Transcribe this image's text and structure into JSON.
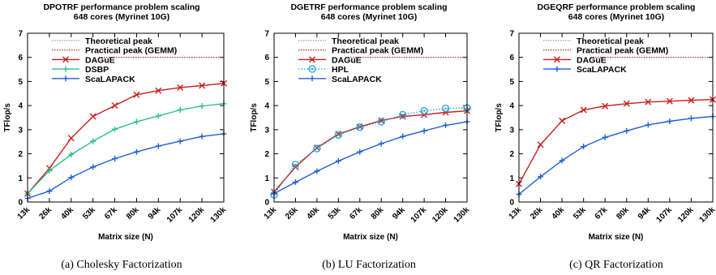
{
  "chart_data": [
    {
      "type": "line",
      "title": "DPOTRF performance problem scaling",
      "subtitle": "648 cores (Myrinet 10G)",
      "xlabel": "Matrix size (N)",
      "ylabel": "TFlop/s",
      "caption": "(a) Cholesky Factorization",
      "ylim": [
        0,
        7
      ],
      "yticks": [
        "0",
        "1",
        "2",
        "3",
        "4",
        "5",
        "6",
        "7"
      ],
      "categories": [
        "13k",
        "26k",
        "40k",
        "53k",
        "67k",
        "80k",
        "94k",
        "107k",
        "120k",
        "130k"
      ],
      "reference_lines": [
        {
          "name": "Theoretical peak",
          "value": 7.0,
          "color": "#7f7f7f",
          "style": "dotted"
        },
        {
          "name": "Practical peak (GEMM)",
          "value": 6.0,
          "color": "#8b0000",
          "style": "dotted"
        }
      ],
      "series": [
        {
          "name": "DAGuE",
          "color": "#c81e1e",
          "marker": "x",
          "values": [
            0.35,
            1.4,
            2.65,
            3.55,
            4.0,
            4.45,
            4.62,
            4.75,
            4.83,
            4.92
          ]
        },
        {
          "name": "DSBP",
          "color": "#2fbf8f",
          "marker": "plus",
          "values": [
            0.35,
            1.3,
            1.97,
            2.52,
            3.02,
            3.33,
            3.57,
            3.82,
            3.98,
            4.08
          ]
        },
        {
          "name": "ScaLAPACK",
          "color": "#1f5fd6",
          "marker": "plus",
          "values": [
            0.15,
            0.45,
            1.02,
            1.45,
            1.8,
            2.08,
            2.32,
            2.52,
            2.72,
            2.83
          ]
        }
      ],
      "legend": "top-left",
      "grid": false
    },
    {
      "type": "line",
      "title": "DGETRF performance problem scaling",
      "subtitle": "648 cores (Myrinet 10G)",
      "xlabel": "Matrix size (N)",
      "ylabel": "TFlop/s",
      "caption": "(b) LU Factorization",
      "ylim": [
        0,
        7
      ],
      "yticks": [
        "0",
        "1",
        "2",
        "3",
        "4",
        "5",
        "6",
        "7"
      ],
      "categories": [
        "13k",
        "26k",
        "40k",
        "53k",
        "67k",
        "80k",
        "94k",
        "107k",
        "120k",
        "130k"
      ],
      "reference_lines": [
        {
          "name": "Theoretical peak",
          "value": 7.0,
          "color": "#7f7f7f",
          "style": "dotted"
        },
        {
          "name": "Practical peak (GEMM)",
          "value": 6.0,
          "color": "#8b0000",
          "style": "dotted"
        }
      ],
      "series": [
        {
          "name": "DAGuE",
          "color": "#c81e1e",
          "marker": "x",
          "values": [
            0.42,
            1.45,
            2.25,
            2.82,
            3.12,
            3.38,
            3.55,
            3.62,
            3.72,
            3.78
          ]
        },
        {
          "name": "HPL",
          "color": "#2aa8d8",
          "marker": "circle",
          "dash": true,
          "values": [
            0.3,
            1.55,
            2.22,
            2.78,
            3.1,
            3.33,
            3.62,
            3.78,
            3.88,
            3.9
          ]
        },
        {
          "name": "ScaLAPACK",
          "color": "#1f5fd6",
          "marker": "plus",
          "values": [
            0.35,
            0.82,
            1.28,
            1.7,
            2.08,
            2.42,
            2.72,
            2.95,
            3.18,
            3.33
          ]
        }
      ],
      "legend": "top-left",
      "grid": false
    },
    {
      "type": "line",
      "title": "DGEQRF performance problem scaling",
      "subtitle": "648 cores (Myrinet 10G)",
      "xlabel": "Matrix size (N)",
      "ylabel": "TFlop/s",
      "caption": "(c) QR Factorization",
      "ylim": [
        0,
        7
      ],
      "yticks": [
        "0",
        "1",
        "2",
        "3",
        "4",
        "5",
        "6",
        "7"
      ],
      "categories": [
        "13k",
        "26k",
        "40k",
        "53k",
        "67k",
        "80k",
        "94k",
        "107k",
        "120k",
        "130k"
      ],
      "reference_lines": [
        {
          "name": "Theoretical peak",
          "value": 7.0,
          "color": "#7f7f7f",
          "style": "dotted"
        },
        {
          "name": "Practical peak (GEMM)",
          "value": 6.0,
          "color": "#8b0000",
          "style": "dotted"
        }
      ],
      "series": [
        {
          "name": "DAGuE",
          "color": "#c81e1e",
          "marker": "x",
          "values": [
            0.75,
            2.38,
            3.37,
            3.82,
            3.98,
            4.08,
            4.15,
            4.18,
            4.22,
            4.25
          ]
        },
        {
          "name": "ScaLAPACK",
          "color": "#1f5fd6",
          "marker": "plus",
          "values": [
            0.32,
            1.05,
            1.72,
            2.3,
            2.68,
            2.95,
            3.2,
            3.35,
            3.47,
            3.55
          ]
        }
      ],
      "legend": "top-left",
      "grid": false
    }
  ]
}
